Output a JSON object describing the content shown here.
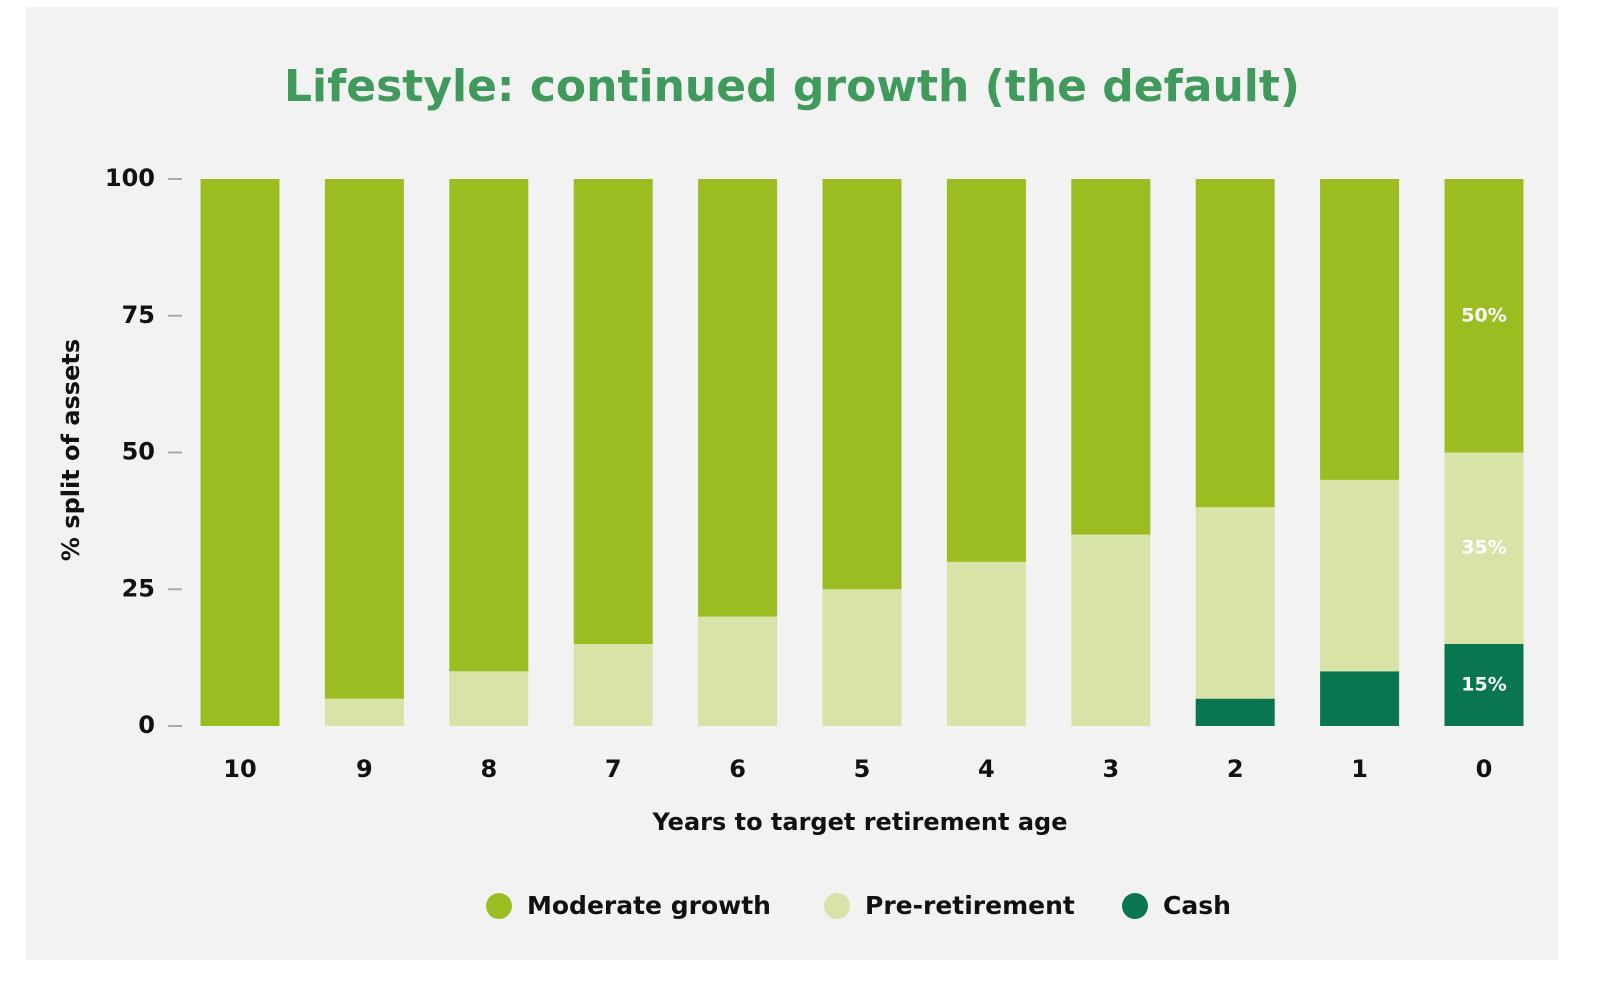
{
  "chart_data": {
    "type": "stacked_bar",
    "title": "Lifestyle: continued growth (the default)",
    "xlabel": "Years to target retirement age",
    "ylabel": "% split of assets",
    "categories": [
      "10",
      "9",
      "8",
      "7",
      "6",
      "5",
      "4",
      "3",
      "2",
      "1",
      "0"
    ],
    "series": [
      {
        "name": "Moderate growth",
        "color": "#9bbd22",
        "values": [
          100,
          95,
          90,
          85,
          80,
          75,
          70,
          65,
          60,
          55,
          50
        ],
        "value_labels": [
          null,
          null,
          null,
          null,
          null,
          null,
          null,
          null,
          null,
          null,
          "50%"
        ]
      },
      {
        "name": "Pre-retirement",
        "color": "#d8e3a8",
        "values": [
          0,
          5,
          10,
          15,
          20,
          25,
          30,
          35,
          35,
          35,
          35
        ],
        "value_labels": [
          null,
          null,
          null,
          null,
          null,
          null,
          null,
          null,
          null,
          null,
          "35%"
        ]
      },
      {
        "name": "Cash",
        "color": "#0a7650",
        "values": [
          0,
          0,
          0,
          0,
          0,
          0,
          0,
          0,
          5,
          10,
          15
        ],
        "value_labels": [
          null,
          null,
          null,
          null,
          null,
          null,
          null,
          null,
          null,
          null,
          "15%"
        ]
      }
    ],
    "ylim": [
      0,
      100
    ],
    "yticks": [
      0,
      25,
      50,
      75,
      100
    ],
    "legend": "bottom"
  }
}
